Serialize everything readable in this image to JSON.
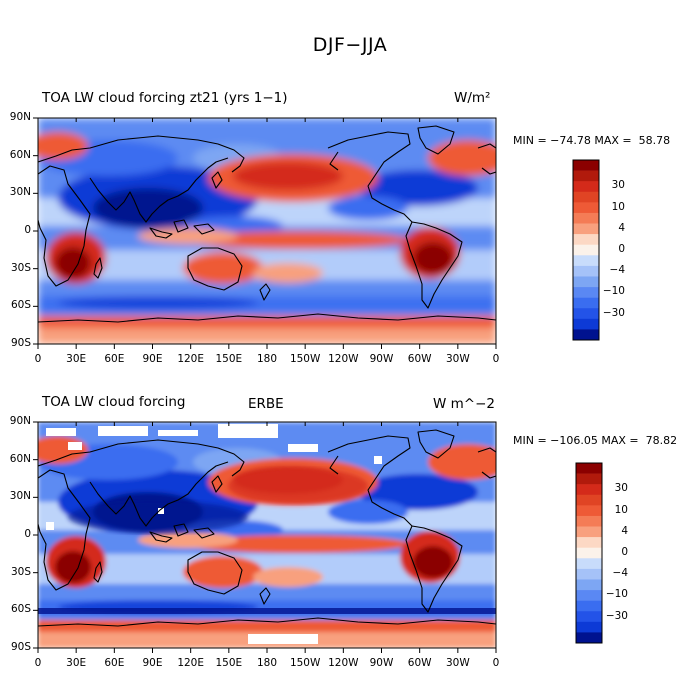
{
  "page_title": "DJF−JJA",
  "panels": [
    {
      "id": "model",
      "title": "TOA LW cloud forcing zt21 (yrs 1−1)",
      "subtitle": "",
      "units": "W/m²",
      "minmax": "MIN = −74.78 MAX =  58.78",
      "colorbar_labels": [
        "30",
        "10",
        "4",
        "0",
        "−4",
        "−10",
        "−30"
      ]
    },
    {
      "id": "obs",
      "title": "TOA LW cloud forcing",
      "subtitle": "ERBE",
      "units": "W  m^−2",
      "minmax": "MIN = −106.05 MAX =  78.82",
      "colorbar_labels": [
        "30",
        "10",
        "4",
        "0",
        "−4",
        "−10",
        "−30"
      ]
    }
  ],
  "lat_labels": [
    "90N",
    "60N",
    "30N",
    "0",
    "30S",
    "60S",
    "90S"
  ],
  "lon_labels": [
    "0",
    "30E",
    "60E",
    "90E",
    "120E",
    "150E",
    "180",
    "150W",
    "120W",
    "90W",
    "60W",
    "30W",
    "0"
  ],
  "colors": {
    "dark_red": "#8b0000",
    "red": "#d42a1a",
    "orange_red": "#ee5a36",
    "salmon": "#f8a07e",
    "peach": "#fcd8c4",
    "near_white": "#fbf2ea",
    "light_blue": "#c8dcfb",
    "mid_blue": "#7da6f3",
    "blue": "#3a6df0",
    "deep_blue": "#0d3ad6",
    "navy": "#00128f",
    "coast": "#000000"
  }
}
